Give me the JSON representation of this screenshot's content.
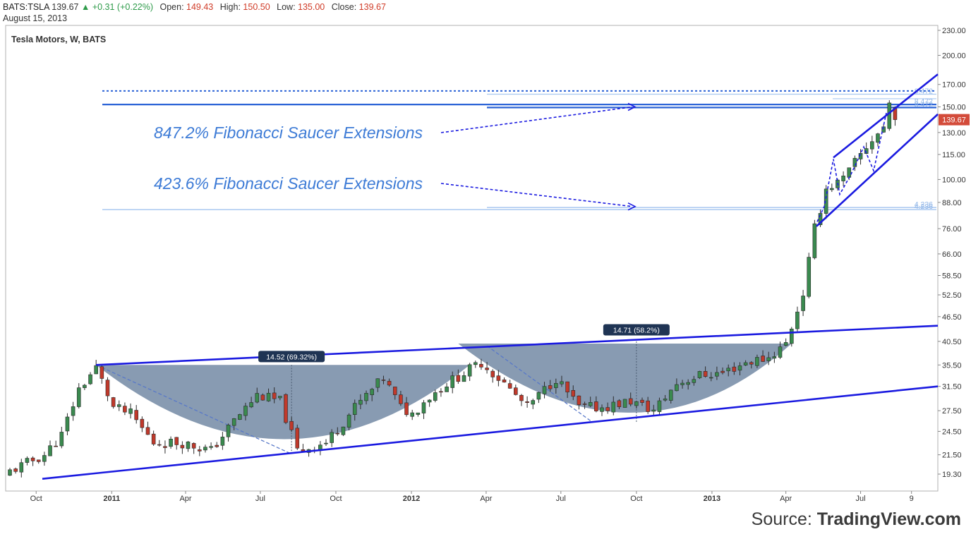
{
  "header": {
    "symbol": "BATS:TSLA",
    "last": "139.67",
    "change": "+0.31 (+0.22%)",
    "open_label": "Open:",
    "open": "149.43",
    "high_label": "High:",
    "high": "150.50",
    "low_label": "Low:",
    "low": "135.00",
    "close_label": "Close:",
    "close": "139.67",
    "date": "August 15, 2013"
  },
  "chart_title": "Tesla Motors, W, BATS",
  "source": {
    "prefix": "Source: ",
    "brand": "TradingView.com"
  },
  "colors": {
    "up": "#3a8a4f",
    "down": "#c0392b",
    "trendline": "#1a1ae0",
    "saucer_fill": "#5a7594",
    "annotation_text": "#3d7bd6",
    "fib_line": "#9ec2ee",
    "price_tag": "#d34b3a"
  },
  "chart_data": {
    "type": "candlestick",
    "title": "Tesla Motors, W, BATS",
    "last_price_tag": "139.67",
    "y_ticks": [
      19.3,
      21.5,
      24.5,
      27.5,
      31.5,
      35.5,
      40.5,
      46.5,
      52.5,
      58.5,
      66.0,
      76.0,
      88.0,
      100.0,
      115.0,
      130.0,
      150.0,
      170.0,
      200.0,
      230.0
    ],
    "y_tick_labels": [
      "19.30",
      "21.50",
      "24.50",
      "27.50",
      "31.50",
      "35.50",
      "40.50",
      "46.50",
      "52.50",
      "58.50",
      "66.00",
      "76.00",
      "88.00",
      "100.00",
      "115.00",
      "130.00",
      "150.00",
      "170.00",
      "200.00",
      "230.00"
    ],
    "x_ticks": [
      {
        "label": "Oct",
        "bold": false,
        "date": "2010-10"
      },
      {
        "label": "2011",
        "bold": true,
        "date": "2011-01"
      },
      {
        "label": "Apr",
        "bold": false,
        "date": "2011-04"
      },
      {
        "label": "Jul",
        "bold": false,
        "date": "2011-07"
      },
      {
        "label": "Oct",
        "bold": false,
        "date": "2011-10"
      },
      {
        "label": "2012",
        "bold": true,
        "date": "2012-01"
      },
      {
        "label": "Apr",
        "bold": false,
        "date": "2012-04"
      },
      {
        "label": "Jul",
        "bold": false,
        "date": "2012-07"
      },
      {
        "label": "Oct",
        "bold": false,
        "date": "2012-10"
      },
      {
        "label": "2013",
        "bold": true,
        "date": "2013-01"
      },
      {
        "label": "Apr",
        "bold": false,
        "date": "2013-04"
      },
      {
        "label": "Jul",
        "bold": false,
        "date": "2013-07"
      },
      {
        "label": "9",
        "bold": false,
        "date": "2013-09"
      }
    ],
    "anchors": [
      {
        "date": "2010-08-30",
        "close": 19.6
      },
      {
        "date": "2010-10-11",
        "close": 21.5
      },
      {
        "date": "2010-11-01",
        "close": 24
      },
      {
        "date": "2010-11-22",
        "close": 31
      },
      {
        "date": "2010-12-13",
        "close": 35
      },
      {
        "date": "2011-01-03",
        "close": 28
      },
      {
        "date": "2011-01-24",
        "close": 27
      },
      {
        "date": "2011-02-21",
        "close": 23
      },
      {
        "date": "2011-03-28",
        "close": 23
      },
      {
        "date": "2011-05-02",
        "close": 22
      },
      {
        "date": "2011-05-30",
        "close": 26
      },
      {
        "date": "2011-06-27",
        "close": 30
      },
      {
        "date": "2011-07-25",
        "close": 29
      },
      {
        "date": "2011-08-15",
        "close": 22
      },
      {
        "date": "2011-09-19",
        "close": 23
      },
      {
        "date": "2011-10-24",
        "close": 28
      },
      {
        "date": "2011-11-28",
        "close": 33
      },
      {
        "date": "2011-12-19",
        "close": 28
      },
      {
        "date": "2012-01-02",
        "close": 27
      },
      {
        "date": "2012-01-16",
        "close": 29
      },
      {
        "date": "2012-02-13",
        "close": 32
      },
      {
        "date": "2012-03-26",
        "close": 36
      },
      {
        "date": "2012-04-23",
        "close": 32
      },
      {
        "date": "2012-05-21",
        "close": 28
      },
      {
        "date": "2012-06-25",
        "close": 33
      },
      {
        "date": "2012-07-23",
        "close": 28
      },
      {
        "date": "2012-08-20",
        "close": 28
      },
      {
        "date": "2012-09-24",
        "close": 29
      },
      {
        "date": "2012-10-22",
        "close": 27.5
      },
      {
        "date": "2012-11-19",
        "close": 32
      },
      {
        "date": "2012-12-17",
        "close": 33.5
      },
      {
        "date": "2013-01-14",
        "close": 34
      },
      {
        "date": "2013-02-11",
        "close": 36
      },
      {
        "date": "2013-03-11",
        "close": 37
      },
      {
        "date": "2013-04-01",
        "close": 40
      },
      {
        "date": "2013-04-22",
        "close": 53
      },
      {
        "date": "2013-05-06",
        "close": 76
      },
      {
        "date": "2013-05-20",
        "close": 95
      },
      {
        "date": "2013-06-10",
        "close": 100
      },
      {
        "date": "2013-07-01",
        "close": 115
      },
      {
        "date": "2013-07-15",
        "close": 125
      },
      {
        "date": "2013-07-29",
        "close": 134
      },
      {
        "date": "2013-08-05",
        "close": 153
      },
      {
        "date": "2013-08-12",
        "close": 139.67
      }
    ],
    "fib_levels": [
      {
        "label": "4.236",
        "value": 85.5
      },
      {
        "label": "4.236",
        "value": 84.5
      },
      {
        "label": "8.472",
        "value": 149.5
      },
      {
        "label": "8.472",
        "value": 152
      },
      {
        "label": "8.472",
        "value": 161
      }
    ],
    "measure_labels": [
      {
        "text": "14.52 (69.32%)",
        "date": "2011-08-08",
        "value": 37.2
      },
      {
        "text": "14.71 (58.2%)",
        "date": "2012-10-01",
        "value": 43.2
      }
    ],
    "annotations": [
      {
        "text": "847.2% Fibonacci Saucer Extensions"
      },
      {
        "text": "423.6% Fibonacci Saucer Extensions"
      }
    ]
  }
}
